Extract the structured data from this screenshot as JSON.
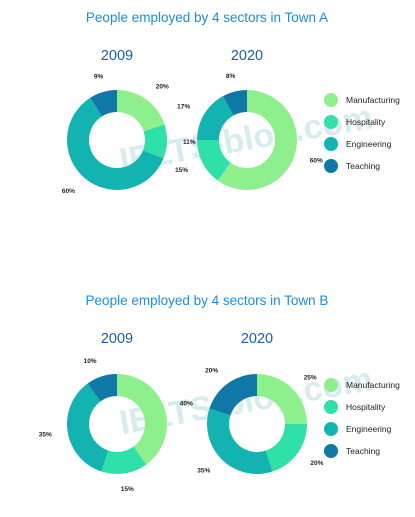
{
  "colors": {
    "title": "#1a8fd6",
    "year": "#1a5fa6",
    "label": "#1f1f1f",
    "legend_text": "#222222",
    "watermark": "#d8ecef"
  },
  "watermark_text": "IELTS-blog.com",
  "chart_data": [
    {
      "type": "pie",
      "donut": true,
      "title": "People employed by 4 sectors in Town A",
      "categories": [
        "Manufacturing",
        "Hospitality",
        "Engineering",
        "Teaching"
      ],
      "category_colors": [
        "#8ef08c",
        "#2fe0a8",
        "#12b3b0",
        "#0f78a6"
      ],
      "series": [
        {
          "name": "2009",
          "values": [
            20,
            11,
            60,
            9
          ],
          "value_labels": [
            "20%",
            "11%",
            "60%",
            "9%"
          ]
        },
        {
          "name": "2020",
          "values": [
            60,
            15,
            17,
            8
          ],
          "value_labels": [
            "60%",
            "15%",
            "17%",
            "8%"
          ]
        }
      ],
      "legend_position": "right"
    },
    {
      "type": "pie",
      "donut": true,
      "title": "People employed by 4 sectors in Town B",
      "categories": [
        "Manufacturing",
        "Hospitality",
        "Engineering",
        "Teaching"
      ],
      "category_colors": [
        "#8ef08c",
        "#2fe0a8",
        "#12b3b0",
        "#0f78a6"
      ],
      "series": [
        {
          "name": "2009",
          "values": [
            40,
            15,
            35,
            10
          ],
          "value_labels": [
            "40%",
            "15%",
            "35%",
            "10%"
          ]
        },
        {
          "name": "2020",
          "values": [
            25,
            20,
            35,
            20
          ],
          "value_labels": [
            "25%",
            "20%",
            "35%",
            "20%"
          ]
        }
      ],
      "legend_position": "right"
    }
  ]
}
